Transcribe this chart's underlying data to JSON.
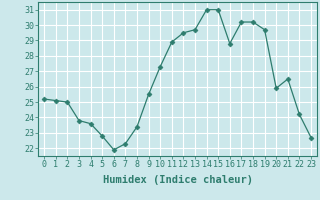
{
  "x": [
    0,
    1,
    2,
    3,
    4,
    5,
    6,
    7,
    8,
    9,
    10,
    11,
    12,
    13,
    14,
    15,
    16,
    17,
    18,
    19,
    20,
    21,
    22,
    23
  ],
  "y": [
    25.2,
    25.1,
    25.0,
    23.8,
    23.6,
    22.8,
    21.9,
    22.3,
    23.4,
    25.5,
    27.3,
    28.9,
    29.5,
    29.7,
    31.0,
    31.0,
    28.8,
    30.2,
    30.2,
    29.7,
    25.9,
    26.5,
    24.2,
    22.7
  ],
  "title": "",
  "xlabel": "Humidex (Indice chaleur)",
  "ylabel": "",
  "xlim": [
    -0.5,
    23.5
  ],
  "ylim": [
    21.5,
    31.5
  ],
  "yticks": [
    22,
    23,
    24,
    25,
    26,
    27,
    28,
    29,
    30,
    31
  ],
  "xticks": [
    0,
    1,
    2,
    3,
    4,
    5,
    6,
    7,
    8,
    9,
    10,
    11,
    12,
    13,
    14,
    15,
    16,
    17,
    18,
    19,
    20,
    21,
    22,
    23
  ],
  "line_color": "#2e7d6e",
  "marker": "D",
  "marker_size": 2.5,
  "bg_color": "#cce8eb",
  "grid_color": "#ffffff",
  "tick_color": "#2e7d6e",
  "label_color": "#2e7d6e",
  "xlabel_fontsize": 7.5,
  "tick_fontsize": 6.0,
  "fig_width": 3.2,
  "fig_height": 2.0,
  "dpi": 100
}
